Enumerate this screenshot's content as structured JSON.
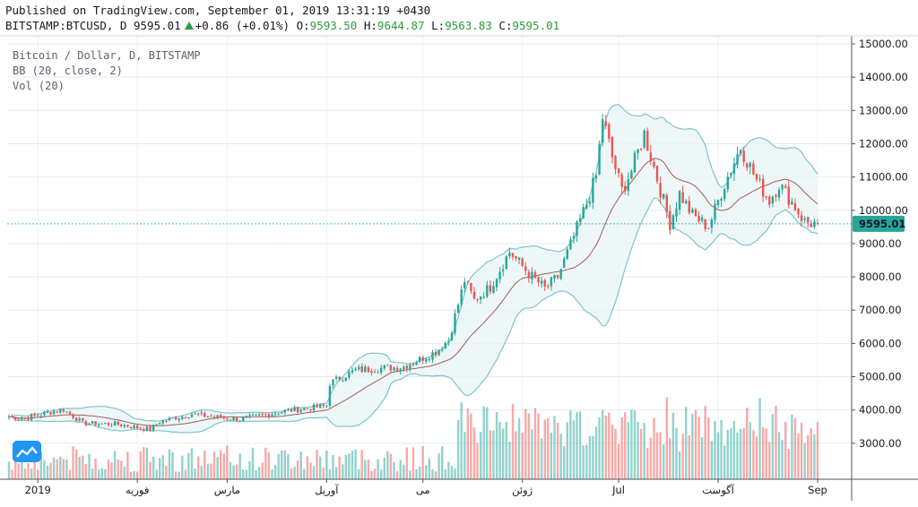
{
  "header": {
    "published": "Published on TradingView.com, September 01, 2019 13:31:19 +0430",
    "symbol": "BITSTAMP:BTCUSD, D",
    "last": "9595.01",
    "change": "+0.86 (+0.01%)",
    "o_label": "O:",
    "o": "9593.50",
    "h_label": "H:",
    "h": "9644.87",
    "l_label": "L:",
    "l": "9563.83",
    "c_label": "C:",
    "c": "9595.01"
  },
  "legend": {
    "title": "Bitcoin / Dollar, D, BITSTAMP",
    "bb": "BB (20, close, 2)",
    "vol": "Vol (20)"
  },
  "colors": {
    "up": "#26a69a",
    "down": "#ef5350",
    "band": "#7fc4c9",
    "basis": "#a05a5a",
    "price_line": "#26a69a"
  },
  "chart_data": {
    "type": "candlestick",
    "symbol": "BITSTAMP:BTCUSD",
    "interval": "D",
    "ylim": [
      2000,
      15300
    ],
    "yticks": [
      3000,
      4000,
      5000,
      6000,
      7000,
      8000,
      9000,
      10000,
      11000,
      12000,
      13000,
      14000,
      15000
    ],
    "ytick_labels": [
      "3000.00",
      "4000.00",
      "5000.00",
      "6000.00",
      "7000.00",
      "8000.00",
      "9000.00",
      "10000.00",
      "11000.00",
      "12000.00",
      "13000.00",
      "14000.00",
      "15000.00"
    ],
    "last_price": 9595.01,
    "last_price_label": "9595.01",
    "xtick_labels": [
      "2019",
      "فوریه",
      "مارس",
      "آوریل",
      "می",
      "ژوئن",
      "Jul",
      "آگوست",
      "Sep"
    ],
    "x_start": "2018-12-23",
    "x_end": "2019-09-01",
    "close_anchors": [
      [
        "2018-12-23",
        3800
      ],
      [
        "2018-12-28",
        3750
      ],
      [
        "2019-01-03",
        3900
      ],
      [
        "2019-01-09",
        4020
      ],
      [
        "2019-01-15",
        3600
      ],
      [
        "2019-01-25",
        3580
      ],
      [
        "2019-02-05",
        3420
      ],
      [
        "2019-02-08",
        3650
      ],
      [
        "2019-02-18",
        3880
      ],
      [
        "2019-02-24",
        3800
      ],
      [
        "2019-03-05",
        3720
      ],
      [
        "2019-03-20",
        3980
      ],
      [
        "2019-04-01",
        4120
      ],
      [
        "2019-04-02",
        4800
      ],
      [
        "2019-04-10",
        5200
      ],
      [
        "2019-04-25",
        5300
      ],
      [
        "2019-05-05",
        5750
      ],
      [
        "2019-05-09",
        6100
      ],
      [
        "2019-05-14",
        7900
      ],
      [
        "2019-05-17",
        7300
      ],
      [
        "2019-05-22",
        7700
      ],
      [
        "2019-05-28",
        8750
      ],
      [
        "2019-06-03",
        8100
      ],
      [
        "2019-06-08",
        7650
      ],
      [
        "2019-06-12",
        8000
      ],
      [
        "2019-06-17",
        9200
      ],
      [
        "2019-06-21",
        10200
      ],
      [
        "2019-06-24",
        11000
      ],
      [
        "2019-06-26",
        12800
      ],
      [
        "2019-06-29",
        11600
      ],
      [
        "2019-07-02",
        10600
      ],
      [
        "2019-07-05",
        11200
      ],
      [
        "2019-07-09",
        12300
      ],
      [
        "2019-07-12",
        11300
      ],
      [
        "2019-07-17",
        9600
      ],
      [
        "2019-07-20",
        10500
      ],
      [
        "2019-07-24",
        9850
      ],
      [
        "2019-07-29",
        9500
      ],
      [
        "2019-08-03",
        10800
      ],
      [
        "2019-08-08",
        11900
      ],
      [
        "2019-08-13",
        10900
      ],
      [
        "2019-08-17",
        10300
      ],
      [
        "2019-08-20",
        10800
      ],
      [
        "2019-08-25",
        10100
      ],
      [
        "2019-08-28",
        9650
      ],
      [
        "2019-09-01",
        9595
      ]
    ]
  }
}
